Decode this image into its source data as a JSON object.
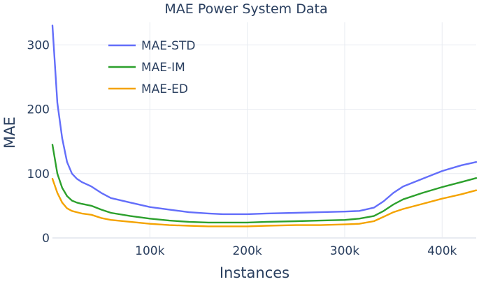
{
  "chart_data": {
    "type": "line",
    "title": "MAE Power System Data",
    "xlabel": "Instances",
    "ylabel": "MAE",
    "xlim": [
      0,
      435000
    ],
    "ylim": [
      0,
      335
    ],
    "grid": true,
    "legend_position": "top-left",
    "x_ticks": [
      {
        "value": 100000,
        "label": "100k"
      },
      {
        "value": 200000,
        "label": "200k"
      },
      {
        "value": 300000,
        "label": "300k"
      },
      {
        "value": 400000,
        "label": "400k"
      }
    ],
    "y_ticks": [
      {
        "value": 0,
        "label": "0"
      },
      {
        "value": 100,
        "label": "100"
      },
      {
        "value": 200,
        "label": "200"
      },
      {
        "value": 300,
        "label": "300"
      }
    ],
    "x": [
      0,
      5000,
      10000,
      15000,
      20000,
      25000,
      30000,
      40000,
      50000,
      60000,
      80000,
      100000,
      120000,
      140000,
      160000,
      175000,
      200000,
      220000,
      250000,
      275000,
      300000,
      315000,
      330000,
      340000,
      350000,
      360000,
      380000,
      400000,
      420000,
      435000
    ],
    "series": [
      {
        "name": "MAE-STD",
        "color": "#636efa",
        "values": [
          330,
          210,
          155,
          118,
          100,
          92,
          87,
          80,
          70,
          62,
          55,
          48,
          44,
          40,
          38,
          37,
          37,
          38,
          39,
          40,
          41,
          42,
          47,
          57,
          70,
          80,
          92,
          104,
          113,
          118
        ]
      },
      {
        "name": "MAE-IM",
        "color": "#2ca02c",
        "values": [
          145,
          100,
          78,
          65,
          58,
          55,
          53,
          50,
          44,
          39,
          34,
          30,
          27,
          25,
          24,
          24,
          24,
          25,
          26,
          27,
          28,
          30,
          34,
          42,
          52,
          60,
          70,
          79,
          87,
          93
        ]
      },
      {
        "name": "MAE-ED",
        "color": "#f4a300",
        "values": [
          92,
          70,
          55,
          46,
          42,
          40,
          38,
          36,
          31,
          28,
          25,
          22,
          20,
          19,
          18,
          18,
          18,
          19,
          20,
          20,
          21,
          22,
          26,
          33,
          40,
          45,
          53,
          61,
          68,
          74
        ]
      }
    ]
  }
}
